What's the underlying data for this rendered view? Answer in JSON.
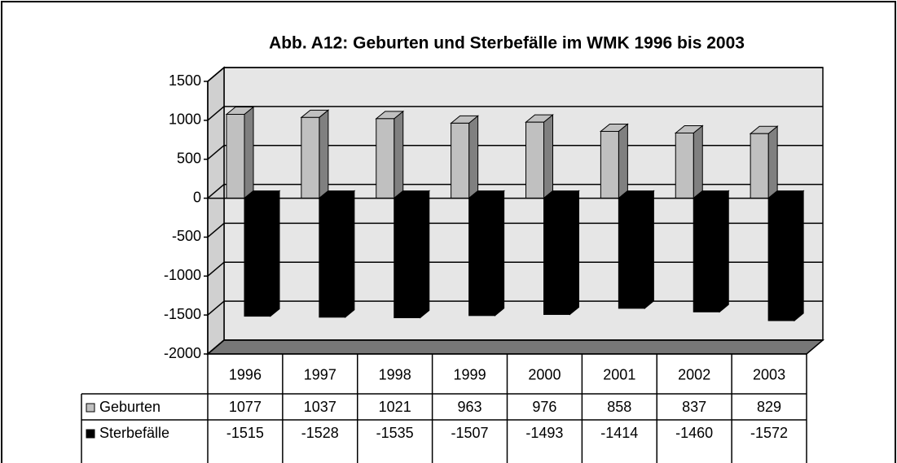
{
  "chart_data": {
    "type": "bar",
    "title": "Abb. A12: Geburten und Sterbefälle im WMK 1996 bis 2003",
    "categories": [
      "1996",
      "1997",
      "1998",
      "1999",
      "2000",
      "2001",
      "2002",
      "2003"
    ],
    "series": [
      {
        "name": "Geburten",
        "color": "#c0c0c0",
        "values": [
          1077,
          1037,
          1021,
          963,
          976,
          858,
          837,
          829
        ]
      },
      {
        "name": "Sterbefälle",
        "color": "#000000",
        "values": [
          -1515,
          -1528,
          -1535,
          -1507,
          -1493,
          -1414,
          -1460,
          -1572
        ]
      }
    ],
    "ylim": [
      -2000,
      1500
    ],
    "yticks": [
      -2000,
      -1500,
      -1000,
      -500,
      0,
      500,
      1000,
      1500
    ],
    "grid": true
  }
}
